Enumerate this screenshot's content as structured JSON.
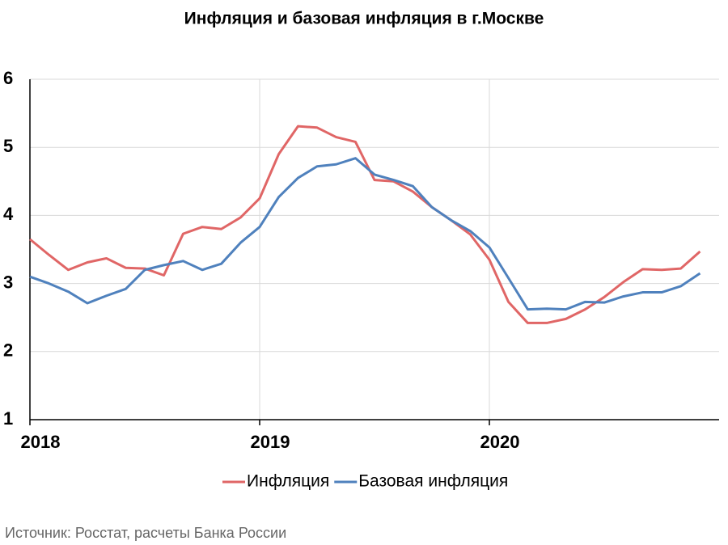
{
  "chart_data": {
    "type": "line",
    "title": "Инфляция и базовая инфляция в г.Москве",
    "source": "Источник: Росстат, расчеты Банка России",
    "x": [
      2018,
      2018.083,
      2018.167,
      2018.25,
      2018.333,
      2018.417,
      2018.5,
      2018.583,
      2018.667,
      2018.75,
      2018.833,
      2018.917,
      2019,
      2019.083,
      2019.167,
      2019.25,
      2019.333,
      2019.417,
      2019.5,
      2019.583,
      2019.667,
      2019.75,
      2019.833,
      2019.917,
      2020,
      2020.083,
      2020.167,
      2020.25,
      2020.333,
      2020.417,
      2020.5,
      2020.583,
      2020.667,
      2020.75,
      2020.833,
      2020.917
    ],
    "series": [
      {
        "name": "Инфляция",
        "color": "#e06666",
        "values": [
          3.65,
          3.42,
          3.2,
          3.31,
          3.37,
          3.23,
          3.22,
          3.12,
          3.73,
          3.83,
          3.8,
          3.97,
          4.25,
          4.9,
          5.31,
          5.29,
          5.15,
          5.08,
          4.52,
          4.5,
          4.35,
          4.12,
          3.93,
          3.72,
          3.35,
          2.73,
          2.42,
          2.42,
          2.48,
          2.62,
          2.8,
          3.02,
          3.21,
          3.2,
          3.22,
          3.47
        ]
      },
      {
        "name": "Базовая инфляция",
        "color": "#4f81bd",
        "values": [
          3.1,
          3.0,
          2.88,
          2.71,
          2.82,
          2.92,
          3.2,
          3.27,
          3.33,
          3.2,
          3.29,
          3.6,
          3.83,
          4.27,
          4.55,
          4.72,
          4.75,
          4.84,
          4.6,
          4.52,
          4.43,
          4.12,
          3.93,
          3.77,
          3.53,
          3.08,
          2.62,
          2.63,
          2.62,
          2.73,
          2.72,
          2.81,
          2.87,
          2.87,
          2.96,
          3.15
        ]
      }
    ],
    "xlim": [
      2018,
      2021
    ],
    "xticks": [
      2018,
      2019,
      2020
    ],
    "ylim": [
      1,
      6
    ],
    "yticks": [
      1,
      2,
      3,
      4,
      5,
      6
    ],
    "grid": true,
    "legend": "bottom"
  }
}
